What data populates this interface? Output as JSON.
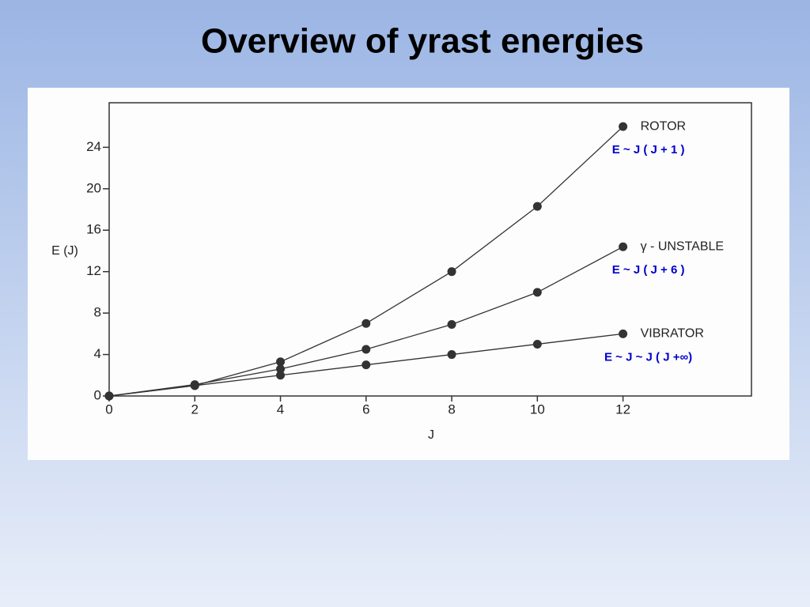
{
  "chart_data": {
    "type": "line",
    "title": "Overview of yrast energies",
    "x_label": "J",
    "y_label": "E (J)",
    "x": [
      0,
      2,
      4,
      6,
      8,
      10,
      12
    ],
    "series": [
      {
        "name": "ROTOR",
        "formula": "E ~  J ( J + 1 )",
        "color": "#333333",
        "values": [
          0,
          1,
          3.3,
          7,
          12,
          18.3,
          26
        ]
      },
      {
        "name": "γ - UNSTABLE",
        "formula": "E ~  J ( J + 6 )",
        "color": "#333333",
        "values": [
          0,
          1.1,
          2.6,
          4.5,
          6.9,
          10,
          14.4
        ]
      },
      {
        "name": "VIBRATOR",
        "formula": "E ~  J ~ J ( J +∞)",
        "color": "#333333",
        "values": [
          0,
          1,
          2,
          3,
          4,
          5,
          6
        ]
      }
    ],
    "xlim": [
      0,
      15
    ],
    "ylim": [
      0,
      28.3
    ],
    "xticks": [
      0,
      2,
      4,
      6,
      8,
      10,
      12
    ],
    "yticks": [
      0,
      4,
      8,
      12,
      16,
      20,
      24
    ],
    "grid": false
  }
}
